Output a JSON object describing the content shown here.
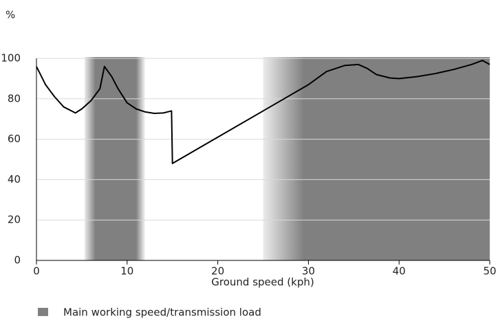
{
  "chart_data": {
    "type": "line",
    "y_label": "%",
    "x_label": "Ground speed (kph)",
    "x": [
      0,
      1,
      2,
      3,
      4.3,
      5,
      6,
      7,
      7.5,
      8.3,
      9,
      10,
      11,
      12,
      13,
      14,
      14.9,
      15,
      20,
      25,
      30,
      32,
      34,
      35.5,
      36.5,
      37.5,
      39,
      40,
      42,
      44,
      46,
      48,
      49.2,
      50
    ],
    "values": [
      96,
      87,
      81,
      76,
      73,
      75,
      79,
      85,
      96,
      91,
      85,
      78,
      75,
      73.5,
      72.8,
      73,
      74,
      48,
      61,
      74,
      87,
      93.5,
      96.5,
      97,
      95,
      92,
      90.3,
      90,
      91,
      92.5,
      94.5,
      97,
      99,
      97
    ],
    "color": "#000000",
    "bands": {
      "name": "Main working speed/transmission load",
      "color": "#808080",
      "ranges": [
        [
          5.3,
          12
        ],
        [
          25,
          50
        ]
      ]
    },
    "xlim": [
      0,
      50
    ],
    "ylim": [
      0,
      100
    ],
    "xticks": [
      0,
      10,
      20,
      30,
      40,
      50
    ],
    "yticks": [
      0,
      20,
      40,
      60,
      80,
      100
    ],
    "grid": true
  }
}
